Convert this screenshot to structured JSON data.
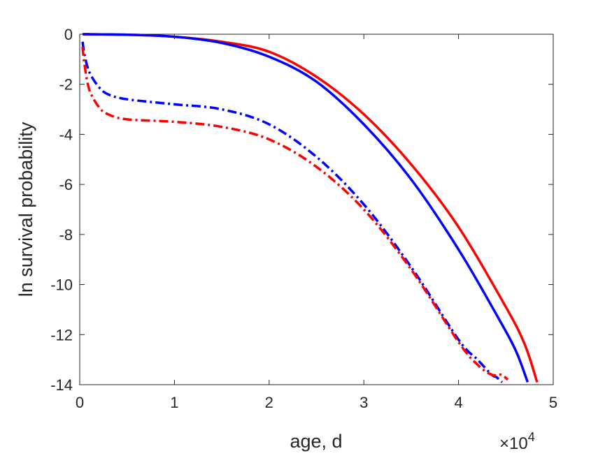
{
  "chart_data": {
    "type": "line",
    "title": "",
    "xlabel": "age, d",
    "ylabel": "ln survival probability",
    "x_multiplier_label": "×10",
    "x_multiplier_exponent": "4",
    "xlim": [
      0,
      50000
    ],
    "ylim": [
      -14,
      0
    ],
    "xticks": [
      0,
      10000,
      20000,
      30000,
      40000,
      50000
    ],
    "xtick_labels": [
      "0",
      "1",
      "2",
      "3",
      "4",
      "5"
    ],
    "yticks": [
      0,
      -2,
      -4,
      -6,
      -8,
      -10,
      -12,
      -14
    ],
    "ytick_labels": [
      "0",
      "-2",
      "-4",
      "-6",
      "-8",
      "-10",
      "-12",
      "-14"
    ],
    "grid": false,
    "legend": "none",
    "series": [
      {
        "color": "#ff0000",
        "dash": "solid",
        "x": [
          300,
          5000,
          10000,
          15000,
          20000,
          25000,
          30000,
          35000,
          40000,
          45000,
          47000,
          48300
        ],
        "y": [
          0,
          -0.02,
          -0.1,
          -0.3,
          -0.7,
          -1.7,
          -3.2,
          -5.2,
          -7.7,
          -10.9,
          -12.4,
          -13.9
        ]
      },
      {
        "color": "#0000ff",
        "dash": "solid",
        "x": [
          300,
          5000,
          10000,
          15000,
          20000,
          25000,
          30000,
          35000,
          40000,
          44000,
          46000,
          47300
        ],
        "y": [
          0,
          -0.02,
          -0.1,
          -0.35,
          -0.9,
          -1.9,
          -3.6,
          -5.8,
          -8.6,
          -11.2,
          -12.6,
          -13.9
        ]
      },
      {
        "color": "#0000ff",
        "dash": "dashdot",
        "x": [
          300,
          500,
          1000,
          2000,
          3000,
          5000,
          10000,
          15000,
          20000,
          25000,
          30000,
          35000,
          40000,
          42000,
          43500,
          44000,
          44600
        ],
        "y": [
          -0.3,
          -0.8,
          -1.5,
          -2.1,
          -2.4,
          -2.6,
          -2.8,
          -3.0,
          -3.6,
          -4.9,
          -6.8,
          -9.3,
          -12.2,
          -13.0,
          -13.6,
          -13.7,
          -13.9
        ]
      },
      {
        "color": "#ff0000",
        "dash": "dashdot",
        "x": [
          300,
          500,
          1000,
          2000,
          3000,
          5000,
          10000,
          15000,
          20000,
          25000,
          30000,
          35000,
          40000,
          42000,
          43500,
          44500,
          45200
        ],
        "y": [
          -0.5,
          -1.2,
          -2.2,
          -2.9,
          -3.2,
          -3.4,
          -3.5,
          -3.7,
          -4.2,
          -5.3,
          -7.0,
          -9.4,
          -12.3,
          -13.2,
          -13.6,
          -13.6,
          -13.8
        ]
      }
    ]
  }
}
